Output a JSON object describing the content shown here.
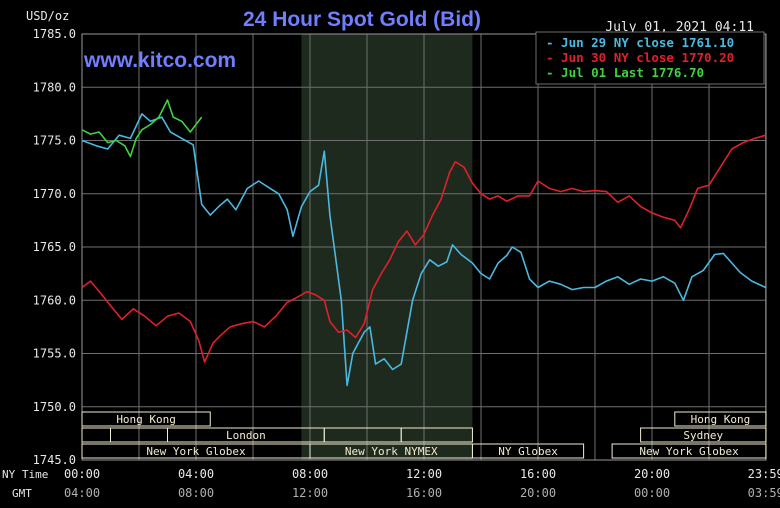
{
  "header": {
    "title": "24 Hour Spot Gold (Bid)",
    "datetime": "July 01, 2021 04:11",
    "unit": "USD/oz",
    "watermark": "www.kitco.com"
  },
  "colors": {
    "background": "#000000",
    "plot_bg": "#000000",
    "grid": "#6e6e6e",
    "text": "#e8e8e8",
    "title": "#6f7fff",
    "jun29": "#4ab8e0",
    "jun30": "#e0202a",
    "jul01": "#3fd23f",
    "shade": "#1f2a1f",
    "session_bar": "#f2ecd0"
  },
  "chart_data": {
    "type": "line",
    "title": "24 Hour Spot Gold (Bid)",
    "ylabel": "USD/oz",
    "ylim": [
      1745,
      1785
    ],
    "xlim": [
      0,
      24
    ],
    "yticks": [
      1785,
      1780,
      1775,
      1770,
      1765,
      1760,
      1755,
      1750,
      1745
    ],
    "ytick_labels": [
      "1785.0",
      "1780.0",
      "1775.0",
      "1770.0",
      "1765.0",
      "1760.0",
      "1755.0",
      "1750.0",
      "1745.0"
    ],
    "xticks_ny": [
      "00:00",
      "04:00",
      "08:00",
      "12:00",
      "16:00",
      "20:00",
      "23:59"
    ],
    "xticks_gmt": [
      "04:00",
      "08:00",
      "12:00",
      "16:00",
      "20:00",
      "00:00",
      "03:59"
    ],
    "x_row_labels": [
      "NY Time",
      "GMT"
    ],
    "grid": true,
    "shaded_region": [
      7.7,
      13.7
    ],
    "legend_position": "top-right",
    "series": [
      {
        "name": "Jun 29 NY close 1761.10",
        "color": "#4ab8e0",
        "points": [
          [
            0,
            1775
          ],
          [
            0.5,
            1774.5
          ],
          [
            0.9,
            1774.2
          ],
          [
            1.3,
            1775.5
          ],
          [
            1.7,
            1775.2
          ],
          [
            2.1,
            1777.5
          ],
          [
            2.4,
            1776.8
          ],
          [
            2.8,
            1777.2
          ],
          [
            3.1,
            1775.8
          ],
          [
            3.5,
            1775.2
          ],
          [
            3.9,
            1774.6
          ],
          [
            4.2,
            1769
          ],
          [
            4.5,
            1768
          ],
          [
            4.8,
            1768.8
          ],
          [
            5.1,
            1769.5
          ],
          [
            5.4,
            1768.5
          ],
          [
            5.8,
            1770.5
          ],
          [
            6.2,
            1771.2
          ],
          [
            6.6,
            1770.5
          ],
          [
            6.9,
            1770
          ],
          [
            7.2,
            1768.5
          ],
          [
            7.4,
            1766
          ],
          [
            7.7,
            1768.8
          ],
          [
            8.0,
            1770.2
          ],
          [
            8.3,
            1770.8
          ],
          [
            8.5,
            1774
          ],
          [
            8.7,
            1768
          ],
          [
            8.9,
            1764
          ],
          [
            9.1,
            1760
          ],
          [
            9.3,
            1752
          ],
          [
            9.5,
            1755
          ],
          [
            9.7,
            1756
          ],
          [
            9.9,
            1757
          ],
          [
            10.1,
            1757.5
          ],
          [
            10.3,
            1754
          ],
          [
            10.6,
            1754.5
          ],
          [
            10.9,
            1753.5
          ],
          [
            11.2,
            1754
          ],
          [
            11.4,
            1757
          ],
          [
            11.6,
            1760
          ],
          [
            11.9,
            1762.5
          ],
          [
            12.2,
            1763.8
          ],
          [
            12.5,
            1763.2
          ],
          [
            12.8,
            1763.6
          ],
          [
            13.0,
            1765.2
          ],
          [
            13.3,
            1764.3
          ],
          [
            13.7,
            1763.5
          ],
          [
            14.0,
            1762.5
          ],
          [
            14.3,
            1762
          ],
          [
            14.6,
            1763.5
          ],
          [
            14.9,
            1764.2
          ],
          [
            15.1,
            1765
          ],
          [
            15.4,
            1764.5
          ],
          [
            15.7,
            1762
          ],
          [
            16.0,
            1761.2
          ],
          [
            16.4,
            1761.8
          ],
          [
            16.8,
            1761.5
          ],
          [
            17.2,
            1761
          ],
          [
            17.6,
            1761.2
          ],
          [
            18.0,
            1761.2
          ],
          [
            18.4,
            1761.8
          ],
          [
            18.8,
            1762.2
          ],
          [
            19.2,
            1761.5
          ],
          [
            19.6,
            1762
          ],
          [
            20.0,
            1761.8
          ],
          [
            20.4,
            1762.2
          ],
          [
            20.8,
            1761.6
          ],
          [
            21.1,
            1760
          ],
          [
            21.4,
            1762.2
          ],
          [
            21.8,
            1762.8
          ],
          [
            22.2,
            1764.3
          ],
          [
            22.5,
            1764.4
          ],
          [
            22.8,
            1763.5
          ],
          [
            23.1,
            1762.6
          ],
          [
            23.5,
            1761.8
          ],
          [
            23.99,
            1761.2
          ]
        ]
      },
      {
        "name": "Jun 30 NY close 1770.20",
        "color": "#e0202a",
        "points": [
          [
            0,
            1761.2
          ],
          [
            0.3,
            1761.8
          ],
          [
            0.7,
            1760.5
          ],
          [
            1.0,
            1759.5
          ],
          [
            1.4,
            1758.2
          ],
          [
            1.8,
            1759.2
          ],
          [
            2.2,
            1758.5
          ],
          [
            2.6,
            1757.6
          ],
          [
            3.0,
            1758.5
          ],
          [
            3.4,
            1758.8
          ],
          [
            3.8,
            1758
          ],
          [
            4.1,
            1756.2
          ],
          [
            4.3,
            1754.2
          ],
          [
            4.6,
            1756
          ],
          [
            4.9,
            1756.8
          ],
          [
            5.2,
            1757.5
          ],
          [
            5.6,
            1757.8
          ],
          [
            6.0,
            1758
          ],
          [
            6.4,
            1757.5
          ],
          [
            6.8,
            1758.5
          ],
          [
            7.2,
            1759.8
          ],
          [
            7.5,
            1760.2
          ],
          [
            7.9,
            1760.8
          ],
          [
            8.2,
            1760.5
          ],
          [
            8.5,
            1760
          ],
          [
            8.7,
            1758
          ],
          [
            9.0,
            1757
          ],
          [
            9.3,
            1757.2
          ],
          [
            9.6,
            1756.5
          ],
          [
            9.9,
            1757.8
          ],
          [
            10.2,
            1761
          ],
          [
            10.5,
            1762.5
          ],
          [
            10.8,
            1763.8
          ],
          [
            11.1,
            1765.5
          ],
          [
            11.4,
            1766.5
          ],
          [
            11.7,
            1765.2
          ],
          [
            12.0,
            1766.2
          ],
          [
            12.3,
            1768
          ],
          [
            12.6,
            1769.5
          ],
          [
            12.9,
            1772
          ],
          [
            13.1,
            1773
          ],
          [
            13.4,
            1772.5
          ],
          [
            13.7,
            1771
          ],
          [
            14.0,
            1770
          ],
          [
            14.3,
            1769.5
          ],
          [
            14.6,
            1769.8
          ],
          [
            14.9,
            1769.3
          ],
          [
            15.3,
            1769.8
          ],
          [
            15.7,
            1769.8
          ],
          [
            16.0,
            1771.2
          ],
          [
            16.4,
            1770.5
          ],
          [
            16.8,
            1770.2
          ],
          [
            17.2,
            1770.5
          ],
          [
            17.6,
            1770.2
          ],
          [
            18.0,
            1770.3
          ],
          [
            18.4,
            1770.2
          ],
          [
            18.8,
            1769.2
          ],
          [
            19.2,
            1769.8
          ],
          [
            19.6,
            1768.8
          ],
          [
            20.0,
            1768.2
          ],
          [
            20.4,
            1767.8
          ],
          [
            20.8,
            1767.5
          ],
          [
            21.0,
            1766.8
          ],
          [
            21.3,
            1768.5
          ],
          [
            21.6,
            1770.5
          ],
          [
            22.0,
            1770.8
          ],
          [
            22.4,
            1772.5
          ],
          [
            22.8,
            1774.2
          ],
          [
            23.2,
            1774.8
          ],
          [
            23.6,
            1775.2
          ],
          [
            23.99,
            1775.5
          ]
        ]
      },
      {
        "name": "Jul 01 Last 1776.70",
        "color": "#3fd23f",
        "points": [
          [
            0,
            1776
          ],
          [
            0.3,
            1775.6
          ],
          [
            0.6,
            1775.8
          ],
          [
            0.9,
            1774.8
          ],
          [
            1.2,
            1775
          ],
          [
            1.5,
            1774.5
          ],
          [
            1.7,
            1773.5
          ],
          [
            1.9,
            1775.2
          ],
          [
            2.1,
            1776
          ],
          [
            2.4,
            1776.5
          ],
          [
            2.7,
            1777.2
          ],
          [
            3.0,
            1778.8
          ],
          [
            3.2,
            1777.2
          ],
          [
            3.5,
            1776.8
          ],
          [
            3.8,
            1775.8
          ],
          [
            4.0,
            1776.5
          ],
          [
            4.2,
            1777.2
          ]
        ]
      }
    ],
    "sessions": [
      {
        "label": "Hong Kong",
        "start": 0,
        "end": 4.5,
        "row": 0,
        "show_label": true
      },
      {
        "label": "London",
        "start": 3,
        "end": 8.5,
        "row": 1,
        "show_label": true
      },
      {
        "label": "New York Globex",
        "start": 0,
        "end": 8.0,
        "row": 2,
        "show_label": true
      },
      {
        "label": "New York NYMEX",
        "start": 8.0,
        "end": 13.7,
        "row": 2,
        "show_label": true
      },
      {
        "label": "NY Globex",
        "start": 13.7,
        "end": 17.6,
        "row": 2,
        "show_label": true
      },
      {
        "label": "New York Globex",
        "start": 18.6,
        "end": 24,
        "row": 2,
        "show_label": true
      },
      {
        "label": "Hong Kong",
        "start": 20.8,
        "end": 24,
        "row": 0,
        "show_label": true
      },
      {
        "label": "Sydney",
        "start": 19.6,
        "end": 24,
        "row": 1,
        "show_label": true
      },
      {
        "label": "",
        "start": 0,
        "end": 1.0,
        "row": 1,
        "show_label": false
      },
      {
        "label": "",
        "start": 1.0,
        "end": 3.0,
        "row": 1,
        "show_label": false
      },
      {
        "label": "",
        "start": 8.5,
        "end": 11.2,
        "row": 1,
        "show_label": false
      },
      {
        "label": "",
        "start": 11.2,
        "end": 13.7,
        "row": 1,
        "show_label": false
      }
    ]
  }
}
